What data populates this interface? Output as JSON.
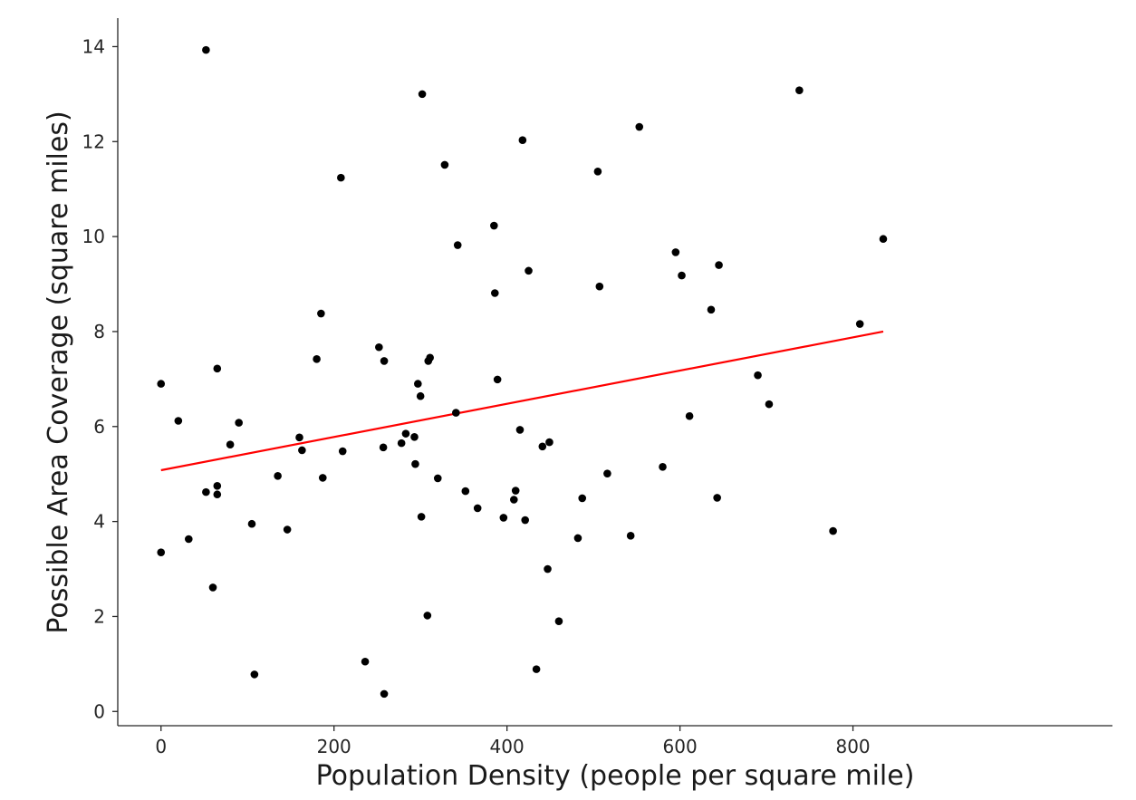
{
  "chart_data": {
    "type": "scatter",
    "title": "",
    "xlabel": "Population Density (people per square mile)",
    "ylabel": "Possible Area Coverage (square miles)",
    "xlim": [
      -50,
      1100
    ],
    "ylim": [
      -0.3,
      14.6
    ],
    "xticks": [
      0,
      200,
      400,
      600,
      800
    ],
    "yticks": [
      0,
      2,
      4,
      6,
      8,
      10,
      12,
      14
    ],
    "grid": false,
    "point_color": "#000000",
    "series": [
      {
        "points": [
          [
            0,
            6.9
          ],
          [
            0,
            3.35
          ],
          [
            20,
            6.12
          ],
          [
            32,
            3.63
          ],
          [
            52,
            13.93
          ],
          [
            52,
            4.62
          ],
          [
            60,
            2.61
          ],
          [
            65,
            4.57
          ],
          [
            65,
            4.75
          ],
          [
            65,
            7.22
          ],
          [
            80,
            5.62
          ],
          [
            90,
            6.08
          ],
          [
            105,
            3.95
          ],
          [
            108,
            0.78
          ],
          [
            135,
            4.96
          ],
          [
            146,
            3.83
          ],
          [
            160,
            5.77
          ],
          [
            163,
            5.5
          ],
          [
            180,
            7.42
          ],
          [
            185,
            8.38
          ],
          [
            187,
            4.92
          ],
          [
            208,
            11.24
          ],
          [
            210,
            5.48
          ],
          [
            236,
            1.05
          ],
          [
            252,
            7.67
          ],
          [
            257,
            5.56
          ],
          [
            258,
            7.38
          ],
          [
            258,
            0.37
          ],
          [
            278,
            5.65
          ],
          [
            283,
            5.85
          ],
          [
            293,
            5.78
          ],
          [
            294,
            5.21
          ],
          [
            297,
            6.9
          ],
          [
            300,
            6.64
          ],
          [
            301,
            4.1
          ],
          [
            302,
            13.0
          ],
          [
            308,
            2.02
          ],
          [
            309,
            7.38
          ],
          [
            311,
            7.45
          ],
          [
            320,
            4.91
          ],
          [
            328,
            11.51
          ],
          [
            341,
            6.29
          ],
          [
            343,
            9.82
          ],
          [
            352,
            4.64
          ],
          [
            366,
            4.28
          ],
          [
            385,
            10.23
          ],
          [
            386,
            8.81
          ],
          [
            389,
            6.99
          ],
          [
            396,
            4.08
          ],
          [
            408,
            4.46
          ],
          [
            410,
            4.65
          ],
          [
            415,
            5.93
          ],
          [
            418,
            12.03
          ],
          [
            421,
            4.03
          ],
          [
            425,
            9.28
          ],
          [
            434,
            0.89
          ],
          [
            441,
            5.58
          ],
          [
            447,
            3.0
          ],
          [
            449,
            5.67
          ],
          [
            460,
            1.9
          ],
          [
            482,
            3.65
          ],
          [
            487,
            4.49
          ],
          [
            505,
            11.37
          ],
          [
            507,
            8.95
          ],
          [
            516,
            5.01
          ],
          [
            543,
            3.7
          ],
          [
            553,
            12.31
          ],
          [
            580,
            5.15
          ],
          [
            595,
            9.67
          ],
          [
            602,
            9.18
          ],
          [
            611,
            6.22
          ],
          [
            636,
            8.46
          ],
          [
            643,
            4.5
          ],
          [
            645,
            9.4
          ],
          [
            690,
            7.08
          ],
          [
            703,
            6.47
          ],
          [
            738,
            13.08
          ],
          [
            777,
            3.8
          ],
          [
            808,
            8.16
          ],
          [
            835,
            9.95
          ]
        ]
      }
    ],
    "trendline": {
      "color": "#ff0000",
      "x": [
        0,
        835
      ],
      "y": [
        5.08,
        8.0
      ]
    }
  }
}
